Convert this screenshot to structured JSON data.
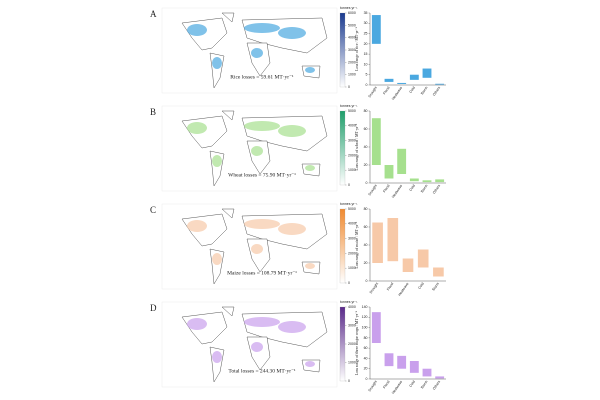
{
  "panels": [
    {
      "label": "A",
      "loss_text": "Rice losses = 59.61 MT·yr⁻¹",
      "color": "#4aa8e0",
      "colorbar_color": "#1a3a8f",
      "colorbar_title": "tonnes yr⁻¹",
      "colorbar_ticks": [
        0,
        1000,
        2000,
        3000,
        4000,
        5000,
        6000
      ],
      "ylabel": "Loss range of rice / MT·yr⁻¹",
      "ylim": [
        0,
        35
      ],
      "yticks": [
        0,
        5,
        10,
        15,
        20,
        25,
        30,
        35
      ],
      "categories": [
        "Drought",
        "Flood",
        "Heatwave",
        "Cold",
        "Storm",
        "Others"
      ],
      "low": [
        20,
        1.5,
        0.5,
        2.5,
        3.5,
        0.2
      ],
      "high": [
        34,
        3,
        1,
        5,
        8,
        0.6
      ]
    },
    {
      "label": "B",
      "loss_text": "Wheat losses = 75.90 MT·yr⁻¹",
      "color": "#a6e08e",
      "colorbar_color": "#1e9e6a",
      "colorbar_title": "tonnes yr⁻¹",
      "colorbar_ticks": [
        0,
        1000,
        2000,
        3000,
        4000,
        5000
      ],
      "ylabel": "Loss range of wheat / MT·yr⁻¹",
      "ylim": [
        0,
        80
      ],
      "yticks": [
        0,
        20,
        40,
        60,
        80
      ],
      "categories": [
        "Drought",
        "Flood",
        "Heatwave",
        "Cold",
        "Storm",
        "Others"
      ],
      "low": [
        20,
        5,
        10,
        2,
        1,
        1
      ],
      "high": [
        72,
        20,
        38,
        5,
        3,
        4
      ]
    },
    {
      "label": "C",
      "loss_text": "Maize losses = 108.79 MT·yr⁻¹",
      "color": "#f7c9a8",
      "colorbar_color": "#f08a30",
      "colorbar_title": "tonnes yr⁻¹",
      "colorbar_ticks": [
        0,
        1000,
        2000,
        3000,
        4000,
        5000
      ],
      "ylabel": "Loss range of maize / MT·yr⁻¹",
      "ylim": [
        0,
        80
      ],
      "yticks": [
        0,
        20,
        40,
        60,
        80
      ],
      "categories": [
        "Drought",
        "Flood",
        "Heatwave",
        "Cold",
        "Storm"
      ],
      "low": [
        20,
        22,
        10,
        15,
        5
      ],
      "high": [
        65,
        70,
        25,
        35,
        15
      ]
    },
    {
      "label": "D",
      "loss_text": "Total losses = 244.30 MT·yr⁻¹",
      "color": "#c9a0ec",
      "colorbar_color": "#5a2a8a",
      "colorbar_title": "tonnes yr⁻¹",
      "colorbar_ticks": [
        0,
        1000,
        2000,
        3000,
        4000
      ],
      "ylabel": "Loss range of three major crops / MT·yr⁻¹",
      "ylim": [
        0,
        140
      ],
      "yticks": [
        0,
        20,
        40,
        60,
        80,
        100,
        120,
        140
      ],
      "categories": [
        "Drought",
        "Flood",
        "Heatwave",
        "Cold",
        "Storm",
        "Others"
      ],
      "low": [
        70,
        25,
        20,
        12,
        5,
        1
      ],
      "high": [
        130,
        50,
        45,
        35,
        20,
        5
      ]
    }
  ]
}
